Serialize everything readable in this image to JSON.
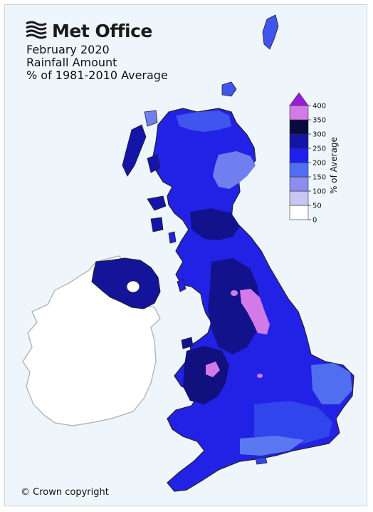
{
  "header": {
    "logo_text": "Met Office",
    "title_line1": "February 2020",
    "title_line2": "Rainfall Amount",
    "title_line3": "% of 1981-2010 Average"
  },
  "footer": {
    "copyright": "© Crown copyright"
  },
  "legend": {
    "label": "% of Average",
    "ticks": [
      "0",
      "50",
      "100",
      "150",
      "200",
      "250",
      "300",
      "350",
      "400"
    ],
    "bins": [
      {
        "range": "0-50",
        "color": "#ffffff"
      },
      {
        "range": "50-100",
        "color": "#c8c5f2"
      },
      {
        "range": "100-150",
        "color": "#8e8cef"
      },
      {
        "range": "150-200",
        "color": "#4f6ef0"
      },
      {
        "range": "200-250",
        "color": "#1f1ff0"
      },
      {
        "range": "250-300",
        "color": "#1414a8"
      },
      {
        "range": "300-350",
        "color": "#0a0a40"
      },
      {
        "range": "350-400",
        "color": "#d27be8"
      },
      {
        "range": ">400",
        "color": "#9a1ad8"
      }
    ]
  },
  "map_colors": {
    "sea": "#eef6fb",
    "ireland": "#ffffff",
    "ireland_border": "#b8b8b8",
    "uk_base": "#2222e6",
    "scotland_light": "#5b6ff0",
    "very_wet": "#12128c",
    "extreme": "#d27be8",
    "coast": "#222222"
  }
}
